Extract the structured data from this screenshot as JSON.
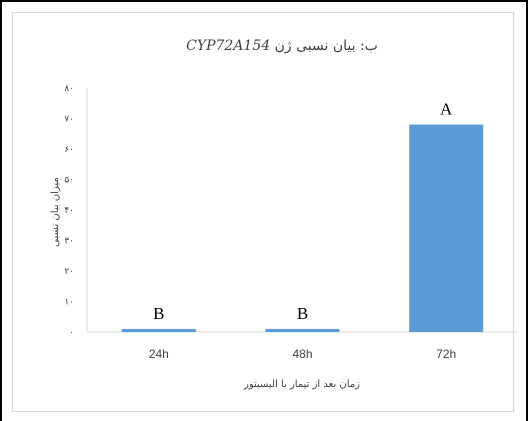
{
  "chart_data": {
    "type": "bar",
    "title": "ب: بیان نسبی ژن CYP72A154",
    "title_rtl": "ب: بیان نسبی ژن",
    "title_gene": "CYP72A154",
    "xlabel": "زمان بعد از تیمار با الیسیتور",
    "ylabel": "میزان بیان نسبی",
    "categories": [
      "24h",
      "48h",
      "72h"
    ],
    "values": [
      1,
      1,
      68
    ],
    "data_labels": [
      "B",
      "B",
      "A"
    ],
    "ylim": [
      0,
      80
    ],
    "yticks": [
      "۰",
      "۱۰",
      "۲۰",
      "۳۰",
      "۴۰",
      "۵۰",
      "۶۰",
      "۷۰",
      "۸۰"
    ],
    "bar_color": "#5b9bd5",
    "grid": false,
    "legend": "none"
  }
}
